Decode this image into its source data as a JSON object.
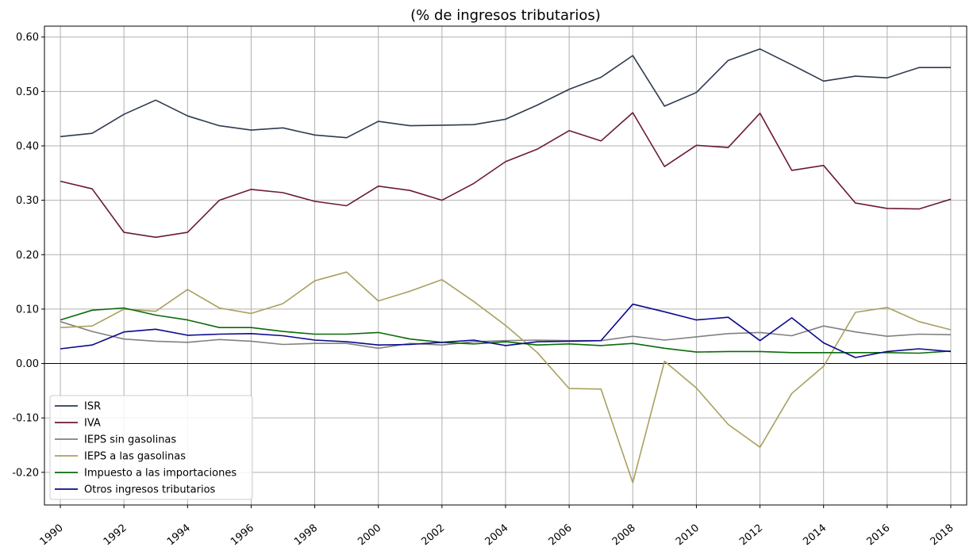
{
  "chart_data": {
    "type": "line",
    "title": "(% de ingresos tributarios)",
    "xlabel": "",
    "ylabel": "",
    "ylim": [
      -0.26,
      0.62
    ],
    "xlim": [
      1989.5,
      2018.5
    ],
    "yticks": [
      -0.2,
      -0.1,
      0.0,
      0.1,
      0.2,
      0.3,
      0.4,
      0.5,
      0.6
    ],
    "ytick_labels": [
      "-0.20",
      "-0.10",
      "0.00",
      "0.10",
      "0.20",
      "0.30",
      "0.40",
      "0.50",
      "0.60"
    ],
    "xticks": [
      1990,
      1992,
      1994,
      1996,
      1998,
      2000,
      2002,
      2004,
      2006,
      2008,
      2010,
      2012,
      2014,
      2016,
      2018
    ],
    "xtick_labels": [
      "1990",
      "1992",
      "1994",
      "1996",
      "1998",
      "2000",
      "2002",
      "2004",
      "2006",
      "2008",
      "2010",
      "2012",
      "2014",
      "2016",
      "2018"
    ],
    "grid": true,
    "legend_position": "lower-left",
    "x": [
      1990,
      1991,
      1992,
      1993,
      1994,
      1995,
      1996,
      1997,
      1998,
      1999,
      2000,
      2001,
      2002,
      2003,
      2004,
      2005,
      2006,
      2007,
      2008,
      2009,
      2010,
      2011,
      2012,
      2013,
      2014,
      2015,
      2016,
      2017,
      2018
    ],
    "series": [
      {
        "name": "ISR",
        "color": "#2f3a4f",
        "values": [
          0.417,
          0.423,
          0.458,
          0.484,
          0.455,
          0.437,
          0.429,
          0.433,
          0.42,
          0.415,
          0.445,
          0.437,
          0.438,
          0.439,
          0.449,
          0.475,
          0.504,
          0.526,
          0.566,
          0.473,
          0.498,
          0.557,
          0.578,
          0.549,
          0.519,
          0.528,
          0.525,
          0.544,
          0.544
        ]
      },
      {
        "name": "IVA",
        "color": "#6b1a36",
        "values": [
          0.335,
          0.321,
          0.241,
          0.232,
          0.241,
          0.3,
          0.32,
          0.314,
          0.298,
          0.29,
          0.326,
          0.318,
          0.3,
          0.331,
          0.371,
          0.394,
          0.428,
          0.409,
          0.461,
          0.362,
          0.401,
          0.397,
          0.46,
          0.355,
          0.364,
          0.295,
          0.285,
          0.284,
          0.302
        ]
      },
      {
        "name": "IEPS sin gasolinas",
        "color": "#808080",
        "values": [
          0.077,
          0.059,
          0.045,
          0.041,
          0.039,
          0.044,
          0.041,
          0.035,
          0.037,
          0.037,
          0.028,
          0.037,
          0.034,
          0.04,
          0.042,
          0.043,
          0.042,
          0.042,
          0.05,
          0.043,
          0.049,
          0.055,
          0.057,
          0.051,
          0.069,
          0.058,
          0.05,
          0.054,
          0.053
        ]
      },
      {
        "name": "IEPS a las gasolinas",
        "color": "#a9a05f",
        "values": [
          0.066,
          0.069,
          0.1,
          0.096,
          0.136,
          0.102,
          0.092,
          0.11,
          0.152,
          0.168,
          0.115,
          0.133,
          0.154,
          0.114,
          0.07,
          0.02,
          -0.046,
          -0.047,
          -0.219,
          0.004,
          -0.045,
          -0.112,
          -0.154,
          -0.055,
          -0.005,
          0.094,
          0.103,
          0.077,
          0.062
        ]
      },
      {
        "name": "Impuesto a las importaciones",
        "color": "#0a6b0a",
        "values": [
          0.08,
          0.098,
          0.102,
          0.089,
          0.08,
          0.066,
          0.066,
          0.059,
          0.054,
          0.054,
          0.057,
          0.045,
          0.039,
          0.036,
          0.04,
          0.034,
          0.036,
          0.033,
          0.037,
          0.028,
          0.021,
          0.022,
          0.022,
          0.02,
          0.02,
          0.02,
          0.02,
          0.019,
          0.023
        ]
      },
      {
        "name": "Otros ingresos tributarios",
        "color": "#0a0a8c",
        "values": [
          0.027,
          0.034,
          0.058,
          0.063,
          0.052,
          0.054,
          0.055,
          0.051,
          0.043,
          0.04,
          0.034,
          0.035,
          0.039,
          0.043,
          0.033,
          0.04,
          0.041,
          0.042,
          0.109,
          0.095,
          0.08,
          0.085,
          0.042,
          0.084,
          0.038,
          0.011,
          0.022,
          0.027,
          0.022
        ]
      }
    ]
  }
}
